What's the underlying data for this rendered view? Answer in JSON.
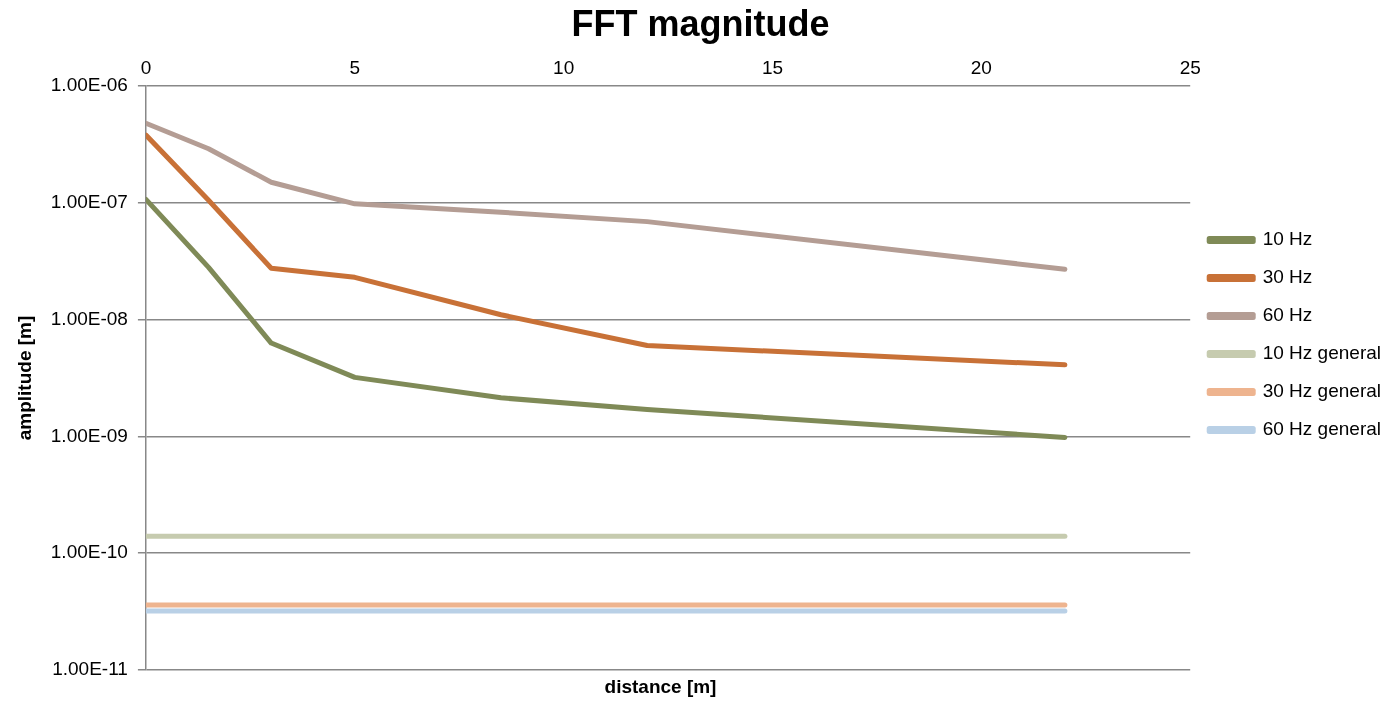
{
  "chart_data": {
    "type": "line",
    "title": "FFT magnitude",
    "xlabel": "distance [m]",
    "ylabel": "amplitude [m]",
    "xlim": [
      0,
      25
    ],
    "xticks": [
      0,
      5,
      10,
      15,
      20,
      25
    ],
    "ylim": [
      1e-11,
      1e-06
    ],
    "yticks": [
      {
        "value": 1e-11,
        "label": "1.00E-11"
      },
      {
        "value": 1e-10,
        "label": "1.00E-10"
      },
      {
        "value": 1e-09,
        "label": "1.00E-09"
      },
      {
        "value": 1e-08,
        "label": "1.00E-08"
      },
      {
        "value": 1e-07,
        "label": "1.00E-07"
      },
      {
        "value": 1e-06,
        "label": "1.00E-06"
      }
    ],
    "log": "y",
    "grid": "y",
    "legend": "right",
    "marker": "none",
    "line_style": "solid",
    "series": [
      {
        "name": "10 Hz",
        "color": "#7f8a57",
        "x": [
          0,
          1.5,
          3,
          5,
          8.5,
          12,
          22
        ],
        "values": [
          1.07e-07,
          2.8e-08,
          6.3e-09,
          3.2e-09,
          2.14e-09,
          1.7e-09,
          9.8e-10
        ]
      },
      {
        "name": "30 Hz",
        "color": "#c87137",
        "x": [
          0,
          1.5,
          3,
          5,
          8.5,
          12,
          22
        ],
        "values": [
          3.8e-07,
          1.05e-07,
          2.75e-08,
          2.3e-08,
          1.1e-08,
          6e-09,
          4.1e-09
        ]
      },
      {
        "name": "60 Hz",
        "color": "#b49d94",
        "x": [
          0,
          1.5,
          3,
          5,
          8.5,
          12,
          22
        ],
        "values": [
          4.8e-07,
          2.9e-07,
          1.5e-07,
          9.8e-08,
          8.3e-08,
          6.9e-08,
          2.7e-08
        ]
      },
      {
        "name": "10 Hz general",
        "color": "#c6cbaf",
        "x": [
          0,
          22
        ],
        "values": [
          1.4e-10,
          1.4e-10
        ]
      },
      {
        "name": "30 Hz general",
        "color": "#eeb48f",
        "x": [
          0,
          22
        ],
        "values": [
          3.6e-11,
          3.6e-11
        ]
      },
      {
        "name": "60 Hz general",
        "color": "#b9d0e6",
        "x": [
          0,
          22
        ],
        "values": [
          3.2e-11,
          3.2e-11
        ]
      }
    ]
  }
}
